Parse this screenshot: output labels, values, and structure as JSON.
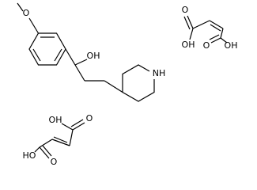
{
  "molecules": [
    {
      "labels": [
        "O",
        "OH",
        "NH"
      ]
    },
    {
      "labels": [
        "O",
        "OH",
        "O",
        "OH"
      ]
    },
    {
      "labels": [
        "OH",
        "O",
        "HO",
        "O"
      ]
    }
  ]
}
